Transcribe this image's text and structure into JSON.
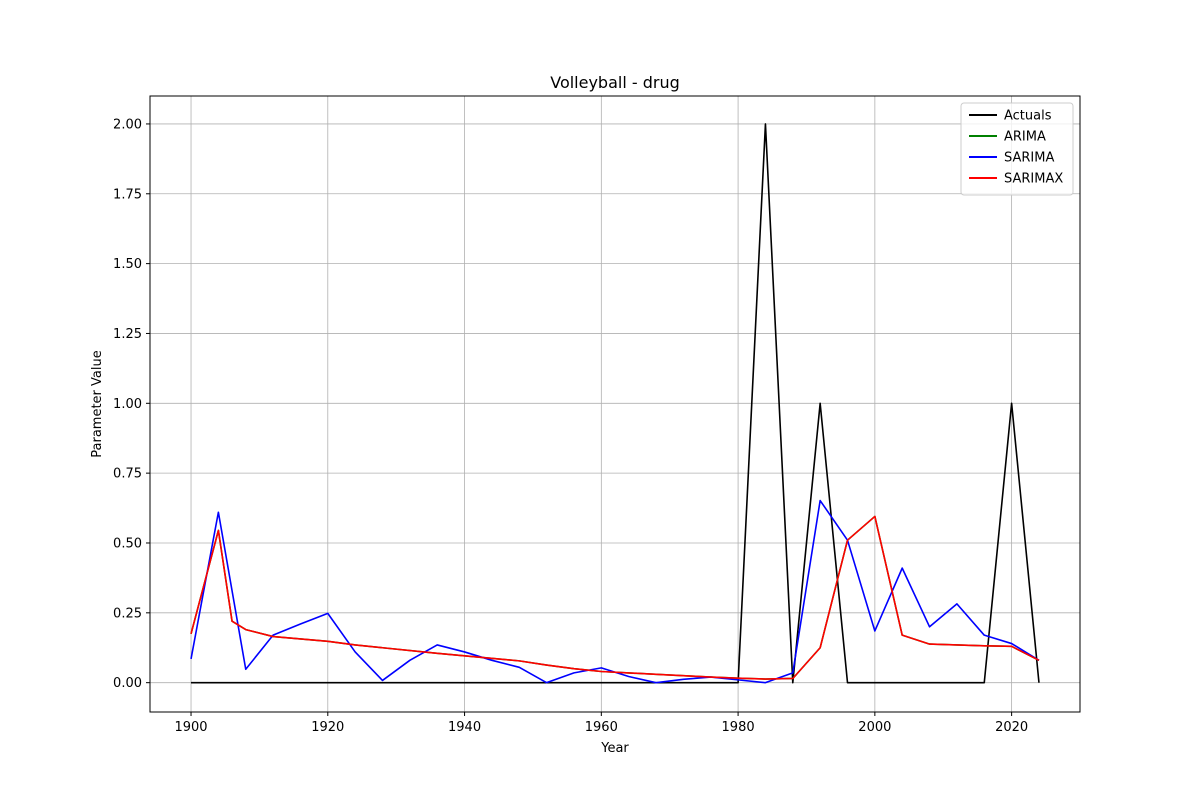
{
  "chart_data": {
    "type": "line",
    "title": "Volleyball - drug",
    "xlabel": "Year",
    "ylabel": "Parameter Value",
    "xlim": [
      1894,
      2030
    ],
    "ylim": [
      -0.105,
      2.1
    ],
    "xticks": [
      1900,
      1920,
      1940,
      1960,
      1980,
      2000,
      2020
    ],
    "xtick_labels": [
      "1900",
      "1920",
      "1940",
      "1960",
      "1980",
      "2000",
      "2020"
    ],
    "yticks": [
      0.0,
      0.25,
      0.5,
      0.75,
      1.0,
      1.25,
      1.5,
      1.75,
      2.0
    ],
    "ytick_labels": [
      "0.00",
      "0.25",
      "0.50",
      "0.75",
      "1.00",
      "1.25",
      "1.50",
      "1.75",
      "2.00"
    ],
    "grid": true,
    "legend_position": "top-right",
    "series": [
      {
        "name": "Actuals",
        "color": "#000000",
        "x": [
          1900,
          1904,
          1908,
          1912,
          1916,
          1920,
          1924,
          1928,
          1932,
          1936,
          1940,
          1944,
          1948,
          1952,
          1956,
          1960,
          1964,
          1968,
          1972,
          1976,
          1980,
          1984,
          1988,
          1992,
          1996,
          2000,
          2004,
          2008,
          2012,
          2016,
          2020,
          2024
        ],
        "y": [
          0,
          0,
          0,
          0,
          0,
          0,
          0,
          0,
          0,
          0,
          0,
          0,
          0,
          0,
          0,
          0,
          0,
          0,
          0,
          0,
          0,
          2.0,
          0,
          1.0,
          0,
          0,
          0,
          0,
          0,
          0,
          1.0,
          0
        ]
      },
      {
        "name": "ARIMA",
        "color": "#008000",
        "x": [
          1900,
          1904,
          1906,
          1908,
          1912,
          1920,
          1924,
          1928,
          1936,
          1948,
          1952,
          1956,
          1960,
          1964,
          1968,
          1976,
          1980,
          1984,
          1988,
          1992,
          1996,
          2000,
          2004,
          2008,
          2012,
          2016,
          2020,
          2024
        ],
        "y": [
          0.175,
          0.545,
          0.22,
          0.19,
          0.165,
          0.148,
          0.135,
          0.125,
          0.105,
          0.078,
          0.063,
          0.05,
          0.04,
          0.035,
          0.03,
          0.02,
          0.016,
          0.013,
          0.015,
          0.125,
          0.51,
          0.595,
          0.17,
          0.138,
          0.135,
          0.132,
          0.13,
          0.08
        ]
      },
      {
        "name": "SARIMA",
        "color": "#0000ff",
        "x": [
          1900,
          1904,
          1908,
          1912,
          1916,
          1920,
          1924,
          1928,
          1932,
          1936,
          1940,
          1944,
          1948,
          1952,
          1956,
          1960,
          1964,
          1968,
          1972,
          1976,
          1980,
          1984,
          1988,
          1992,
          1996,
          2000,
          2004,
          2008,
          2012,
          2016,
          2020,
          2024
        ],
        "y": [
          0.085,
          0.61,
          0.048,
          0.17,
          0.21,
          0.248,
          0.11,
          0.008,
          0.08,
          0.135,
          0.11,
          0.08,
          0.055,
          0.0,
          0.035,
          0.053,
          0.022,
          0.0,
          0.012,
          0.02,
          0.01,
          0.0,
          0.035,
          0.652,
          0.51,
          0.185,
          0.41,
          0.2,
          0.282,
          0.17,
          0.14,
          0.08
        ]
      },
      {
        "name": "SARIMAX",
        "color": "#ff0000",
        "x": [
          1900,
          1904,
          1906,
          1908,
          1912,
          1920,
          1924,
          1928,
          1936,
          1948,
          1952,
          1956,
          1960,
          1964,
          1968,
          1976,
          1980,
          1984,
          1988,
          1992,
          1996,
          2000,
          2004,
          2008,
          2012,
          2016,
          2020,
          2024
        ],
        "y": [
          0.175,
          0.545,
          0.22,
          0.19,
          0.165,
          0.148,
          0.135,
          0.125,
          0.105,
          0.078,
          0.063,
          0.05,
          0.04,
          0.035,
          0.03,
          0.02,
          0.016,
          0.013,
          0.015,
          0.125,
          0.51,
          0.595,
          0.17,
          0.138,
          0.135,
          0.132,
          0.13,
          0.08
        ]
      }
    ]
  }
}
